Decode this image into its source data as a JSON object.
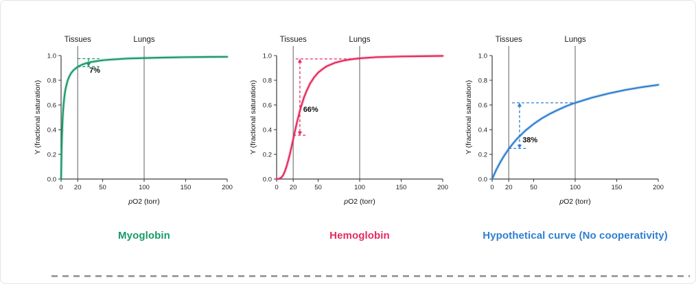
{
  "page": {
    "background": "#ffffff",
    "border_color": "#e4e4e4",
    "divider_color": "#9e9e9e"
  },
  "chart_data": [
    {
      "type": "line",
      "title": "Myoglobin",
      "color": "#189a68",
      "xlabel": "pO2 (torr)",
      "xlabel_italic": "p",
      "xlabel_rest": "O2 (torr)",
      "ylabel": "Y (fractional saturation)",
      "xlim": [
        0,
        200
      ],
      "ylim": [
        0,
        1
      ],
      "x_ticks": [
        0,
        20,
        50,
        100,
        150,
        200
      ],
      "y_ticks": [
        0,
        0.2,
        0.4,
        0.6,
        0.8,
        1
      ],
      "reference_lines": [
        {
          "x": 20,
          "label": "Tissues"
        },
        {
          "x": 100,
          "label": "Lungs"
        }
      ],
      "points": [
        [
          0,
          0
        ],
        [
          0.5,
          0.2
        ],
        [
          1,
          0.333
        ],
        [
          1.5,
          0.429
        ],
        [
          2,
          0.5
        ],
        [
          2.5,
          0.556
        ],
        [
          3,
          0.6
        ],
        [
          4,
          0.667
        ],
        [
          5,
          0.714
        ],
        [
          6,
          0.75
        ],
        [
          8,
          0.8
        ],
        [
          10,
          0.833
        ],
        [
          12,
          0.857
        ],
        [
          15,
          0.882
        ],
        [
          20,
          0.909
        ],
        [
          25,
          0.926
        ],
        [
          30,
          0.938
        ],
        [
          35,
          0.946
        ],
        [
          40,
          0.952
        ],
        [
          50,
          0.962
        ],
        [
          60,
          0.968
        ],
        [
          80,
          0.976
        ],
        [
          100,
          0.98
        ],
        [
          125,
          0.984
        ],
        [
          150,
          0.987
        ],
        [
          175,
          0.989
        ],
        [
          200,
          0.99
        ]
      ],
      "annotation": {
        "label": "7%",
        "y_high": 0.975,
        "y_low": 0.91,
        "x_arrow": 33,
        "top_line_x": [
          20,
          46
        ],
        "bottom_line_x": [
          20,
          46
        ],
        "arrows": "down",
        "label_pos": [
          34,
          0.862
        ]
      }
    },
    {
      "type": "line",
      "title": "Hemoglobin",
      "color": "#e52a5e",
      "xlabel": "pO2 (torr)",
      "xlabel_italic": "p",
      "xlabel_rest": "O2 (torr)",
      "ylabel": "Y (fractional saturation)",
      "xlim": [
        0,
        200
      ],
      "ylim": [
        0,
        1
      ],
      "x_ticks": [
        0,
        20,
        50,
        100,
        150,
        200
      ],
      "y_ticks": [
        0,
        0.2,
        0.4,
        0.6,
        0.8,
        1
      ],
      "reference_lines": [
        {
          "x": 20,
          "label": "Tissues"
        },
        {
          "x": 100,
          "label": "Lungs"
        }
      ],
      "points": [
        [
          0,
          0
        ],
        [
          2,
          0.001
        ],
        [
          4,
          0.005
        ],
        [
          6,
          0.015
        ],
        [
          8,
          0.033
        ],
        [
          10,
          0.064
        ],
        [
          12,
          0.103
        ],
        [
          14,
          0.15
        ],
        [
          16,
          0.204
        ],
        [
          18,
          0.263
        ],
        [
          20,
          0.324
        ],
        [
          22,
          0.385
        ],
        [
          24,
          0.444
        ],
        [
          26,
          0.5
        ],
        [
          28,
          0.552
        ],
        [
          30,
          0.599
        ],
        [
          33,
          0.661
        ],
        [
          36,
          0.713
        ],
        [
          40,
          0.77
        ],
        [
          45,
          0.823
        ],
        [
          50,
          0.862
        ],
        [
          55,
          0.889
        ],
        [
          60,
          0.912
        ],
        [
          70,
          0.941
        ],
        [
          80,
          0.959
        ],
        [
          90,
          0.97
        ],
        [
          100,
          0.978
        ],
        [
          120,
          0.987
        ],
        [
          150,
          0.993
        ],
        [
          175,
          0.995
        ],
        [
          200,
          0.997
        ]
      ],
      "annotation": {
        "label": "66%",
        "y_high": 0.973,
        "y_low": 0.355,
        "x_arrow": 28,
        "top_line_x": [
          23,
          100
        ],
        "bottom_line_x": [
          20,
          35
        ],
        "arrows": "both",
        "label_pos": [
          32,
          0.545
        ]
      }
    },
    {
      "type": "line",
      "title": "Hypothetical curve (No cooperativity)",
      "color": "#2e7fd0",
      "xlabel": "pO2 (torr)",
      "xlabel_italic": "p",
      "xlabel_rest": "O2 (torr)",
      "ylabel": "Y (fractional saturation)",
      "xlim": [
        0,
        200
      ],
      "ylim": [
        0,
        1
      ],
      "x_ticks": [
        0,
        20,
        50,
        100,
        150,
        200
      ],
      "y_ticks": [
        0,
        0.2,
        0.4,
        0.6,
        0.8,
        1
      ],
      "reference_lines": [
        {
          "x": 20,
          "label": "Tissues"
        },
        {
          "x": 100,
          "label": "Lungs"
        }
      ],
      "points": [
        [
          0,
          0
        ],
        [
          5,
          0.075
        ],
        [
          10,
          0.139
        ],
        [
          15,
          0.195
        ],
        [
          20,
          0.244
        ],
        [
          25,
          0.287
        ],
        [
          30,
          0.326
        ],
        [
          40,
          0.392
        ],
        [
          50,
          0.446
        ],
        [
          60,
          0.492
        ],
        [
          70,
          0.53
        ],
        [
          80,
          0.563
        ],
        [
          90,
          0.592
        ],
        [
          100,
          0.617
        ],
        [
          120,
          0.659
        ],
        [
          140,
          0.693
        ],
        [
          160,
          0.721
        ],
        [
          180,
          0.744
        ],
        [
          200,
          0.763
        ]
      ],
      "annotation": {
        "label": "38%",
        "y_high": 0.617,
        "y_low": 0.248,
        "x_arrow": 33,
        "top_line_x": [
          24,
          100
        ],
        "bottom_line_x": [
          20,
          41
        ],
        "arrows": "both",
        "label_pos": [
          36.5,
          0.298
        ]
      }
    }
  ]
}
